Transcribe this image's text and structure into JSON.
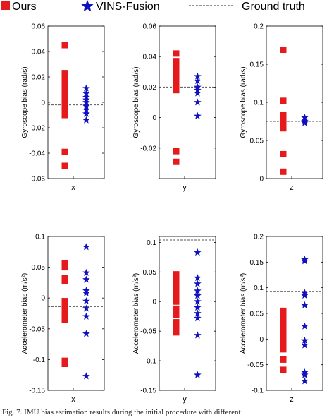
{
  "legend": {
    "items": [
      {
        "label": "Ours",
        "marker": "square",
        "color": "#e41a1c"
      },
      {
        "label": "VINS-Fusion",
        "marker": "star",
        "color": "#1010c0"
      },
      {
        "label": "Ground truth",
        "marker": "dashed-line",
        "color": "#555555"
      }
    ]
  },
  "caption": "Fig. 7.   IMU bias estimation results during the initial procedure with different",
  "chart_data": [
    {
      "type": "scatter",
      "title": "",
      "xlabel": "x",
      "ylabel": "Gyroscope bias (rad/s)",
      "ylim": [
        -0.06,
        0.06
      ],
      "yticks": [
        "-0.06",
        "-0.04",
        "-0.02",
        "0",
        "0.02",
        "0.04",
        "0.06"
      ],
      "ytick_values": [
        -0.06,
        -0.04,
        -0.02,
        0,
        0.02,
        0.04,
        0.06
      ],
      "ground_truth": -0.002,
      "series": [
        {
          "name": "Ours",
          "values": [
            0.045,
            0.023,
            0.019,
            0.015,
            0.012,
            0.008,
            0.004,
            0.002,
            -0.002,
            -0.004,
            -0.007,
            -0.01,
            -0.039,
            -0.05
          ]
        },
        {
          "name": "VINS-Fusion",
          "values": [
            0.011,
            0.007,
            0.004,
            0.002,
            0.0,
            -0.003,
            -0.006,
            -0.009,
            -0.014
          ]
        }
      ]
    },
    {
      "type": "scatter",
      "title": "",
      "xlabel": "y",
      "ylabel": "Gyroscope bias (rad/s)",
      "ylim": [
        -0.04,
        0.06
      ],
      "yticks": [
        "-0.02",
        "0",
        "0.02",
        "0.04",
        "0.06"
      ],
      "ytick_values": [
        -0.02,
        0,
        0.02,
        0.04,
        0.06
      ],
      "ground_truth": 0.02,
      "series": [
        {
          "name": "Ours",
          "values": [
            0.042,
            0.037,
            0.033,
            0.03,
            0.028,
            0.026,
            0.024,
            0.022,
            0.02,
            0.018,
            -0.022,
            -0.029
          ]
        },
        {
          "name": "VINS-Fusion",
          "values": [
            0.027,
            0.024,
            0.02,
            0.018,
            0.016,
            0.01,
            0.001
          ]
        }
      ]
    },
    {
      "type": "scatter",
      "title": "",
      "xlabel": "z",
      "ylabel": "Gyroscope bias (rad/s)",
      "ylim": [
        0,
        0.2
      ],
      "yticks": [
        "0",
        "0.05",
        "0.1",
        "0.15",
        "0.2"
      ],
      "ytick_values": [
        0,
        0.05,
        0.1,
        0.15,
        0.2
      ],
      "ground_truth": 0.075,
      "series": [
        {
          "name": "Ours",
          "values": [
            0.169,
            0.102,
            0.083,
            0.08,
            0.077,
            0.073,
            0.066,
            0.032,
            0.009
          ]
        },
        {
          "name": "VINS-Fusion",
          "values": [
            0.08,
            0.077,
            0.075,
            0.073
          ]
        }
      ]
    },
    {
      "type": "scatter",
      "title": "",
      "xlabel": "x",
      "ylabel": "Accelerometer bias (m/s²)",
      "ylim": [
        -0.15,
        0.1
      ],
      "yticks": [
        "-0.15",
        "-0.1",
        "-0.05",
        "0",
        "0.05",
        "0.1"
      ],
      "ytick_values": [
        -0.15,
        -0.1,
        -0.05,
        0,
        0.05,
        0.1
      ],
      "ground_truth": -0.014,
      "series": [
        {
          "name": "Ours",
          "values": [
            0.057,
            0.05,
            0.032,
            0.028,
            -0.005,
            -0.015,
            -0.022,
            -0.03,
            -0.035,
            -0.102,
            -0.107
          ]
        },
        {
          "name": "VINS-Fusion",
          "values": [
            0.083,
            0.041,
            0.03,
            0.012,
            0.008,
            -0.005,
            -0.017,
            -0.03,
            -0.058,
            -0.127
          ]
        }
      ]
    },
    {
      "type": "scatter",
      "title": "",
      "xlabel": "y",
      "ylabel": "Accelerometer bias (m/s²)",
      "ylim": [
        -0.15,
        0.11
      ],
      "yticks": [
        "-0.15",
        "-0.1",
        "-0.05",
        "0",
        "0.05",
        "0.1"
      ],
      "ytick_values": [
        -0.15,
        -0.1,
        -0.05,
        0,
        0.05,
        0.1
      ],
      "ground_truth": 0.104,
      "series": [
        {
          "name": "Ours",
          "values": [
            0.046,
            0.038,
            0.03,
            0.02,
            0.01,
            0.0,
            -0.012,
            -0.022,
            -0.035,
            -0.045,
            -0.052
          ]
        },
        {
          "name": "VINS-Fusion",
          "values": [
            0.083,
            0.04,
            0.03,
            0.018,
            0.01,
            0.0,
            -0.01,
            -0.02,
            -0.028,
            -0.057,
            -0.124
          ]
        }
      ]
    },
    {
      "type": "scatter",
      "title": "",
      "xlabel": "z",
      "ylabel": "Accelerometer bias (m/s²)",
      "ylim": [
        -0.1,
        0.2
      ],
      "yticks": [
        "-0.1",
        "-0.05",
        "0",
        "0.05",
        "0.1",
        "0.15",
        "0.2"
      ],
      "ytick_values": [
        -0.1,
        -0.05,
        0,
        0.05,
        0.1,
        0.15,
        0.2
      ],
      "ground_truth": 0.093,
      "series": [
        {
          "name": "Ours",
          "values": [
            0.055,
            0.048,
            0.04,
            0.032,
            0.025,
            0.018,
            0.01,
            0.002,
            -0.008,
            -0.02,
            -0.04,
            -0.06
          ]
        },
        {
          "name": "VINS-Fusion",
          "values": [
            0.155,
            0.152,
            0.09,
            0.085,
            0.066,
            0.025,
            -0.003,
            -0.012,
            -0.065,
            -0.07,
            -0.082
          ]
        }
      ]
    }
  ]
}
